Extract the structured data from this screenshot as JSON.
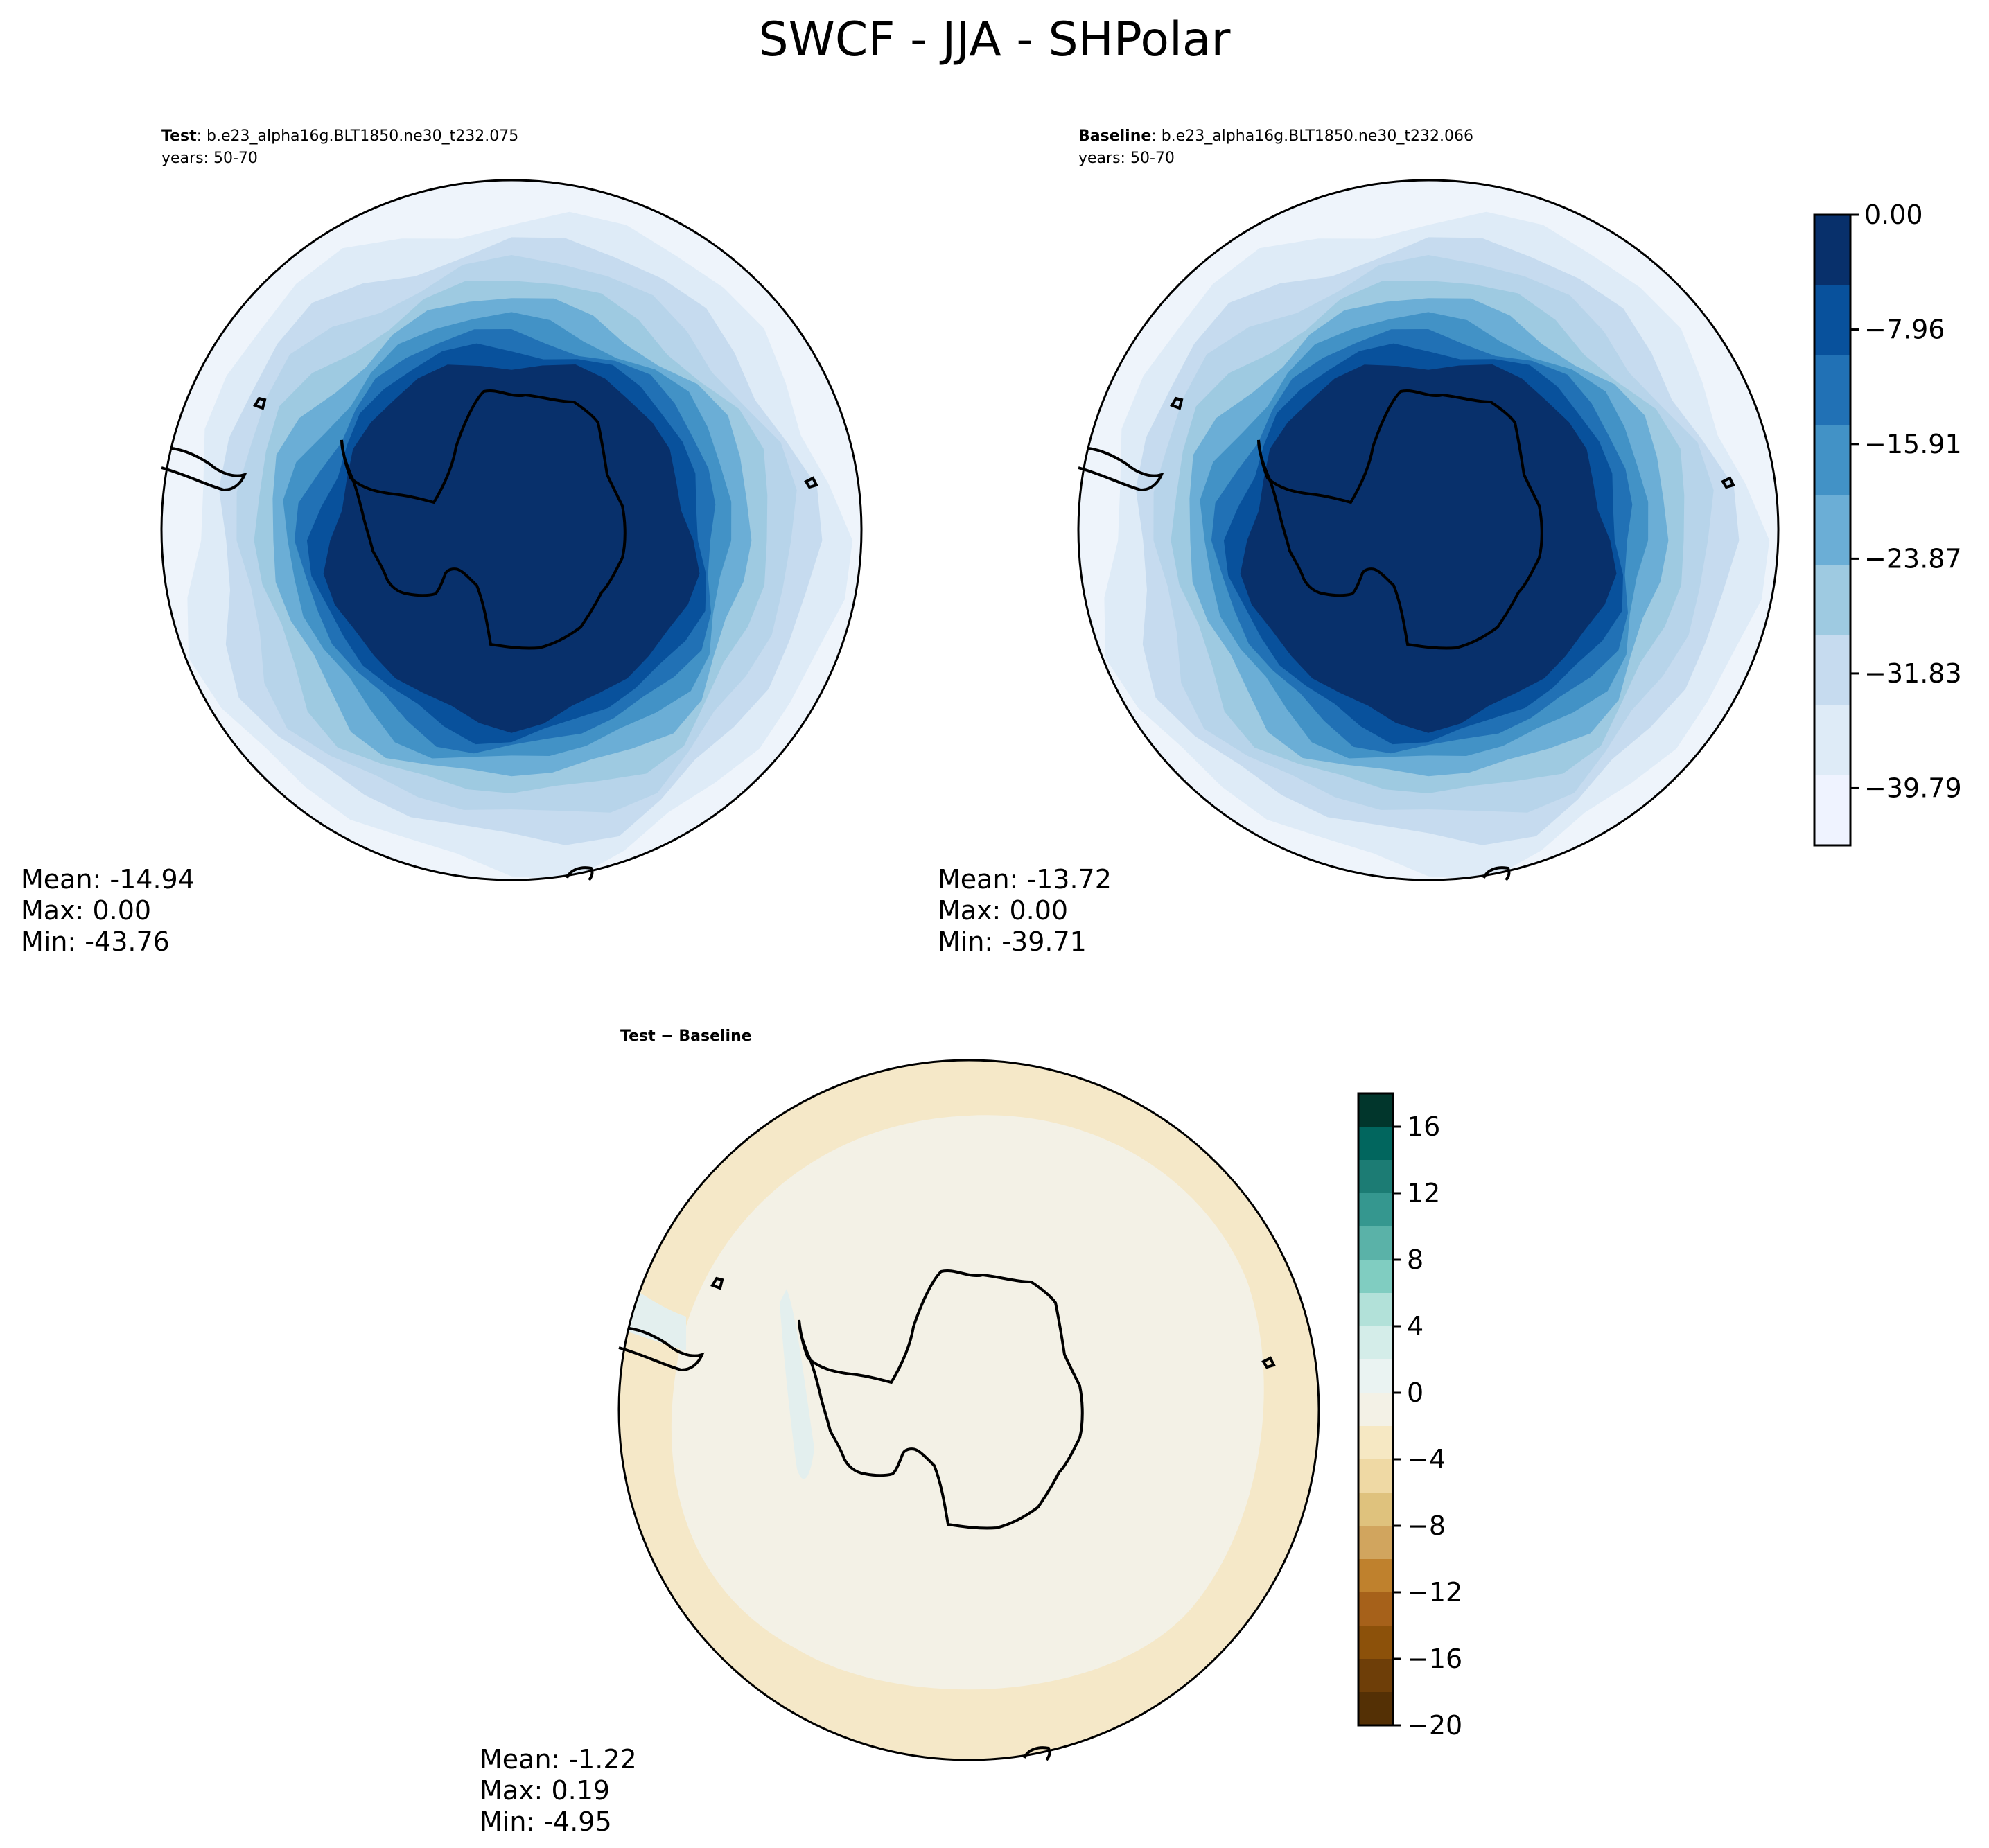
{
  "figure": {
    "title": "SWCF - JJA - SHPolar"
  },
  "panels": [
    {
      "id": "test",
      "label_bold": "Test",
      "label_rest": ": b.e23_alpha16g.BLT1850.ne30_t232.075",
      "years": "years: 50-70",
      "stats": {
        "mean": "Mean: -14.94",
        "max": "Max:  0.00",
        "min": "Min: -43.76"
      },
      "field": {
        "min": -43.76,
        "max": 0.0,
        "mean": -14.94,
        "colormap": "Blues_r"
      }
    },
    {
      "id": "baseline",
      "label_bold": "Baseline",
      "label_rest": ": b.e23_alpha16g.BLT1850.ne30_t232.066",
      "years": "years: 50-70",
      "stats": {
        "mean": "Mean: -13.72",
        "max": "Max:  0.00",
        "min": "Min: -39.71"
      },
      "field": {
        "min": -39.71,
        "max": 0.0,
        "mean": -13.72,
        "colormap": "Blues_r"
      }
    },
    {
      "id": "diff",
      "label_bold": "Test",
      "label_rest": " − Baseline",
      "stats": {
        "mean": "Mean: -1.22",
        "max": "Max:  0.19",
        "min": "Min: -4.95"
      },
      "field": {
        "min": -4.95,
        "max": 0.19,
        "mean": -1.22,
        "colormap": "BrBG"
      }
    }
  ],
  "colorbars": {
    "main": {
      "ticks": [
        "0.00",
        "−7.96",
        "−15.91",
        "−23.87",
        "−31.83",
        "−39.79"
      ],
      "colors": [
        "#08306b",
        "#08519c",
        "#2171b5",
        "#4292c6",
        "#6baed6",
        "#9ecae1",
        "#c6dbef",
        "#deebf7",
        "#eff3ff"
      ]
    },
    "diff": {
      "ticks": [
        "16",
        "12",
        "8",
        "4",
        "0",
        "−4",
        "−8",
        "−12",
        "−16",
        "−20"
      ],
      "colors": [
        "#01362c",
        "#01665e",
        "#1c7c74",
        "#35978f",
        "#5ab2a8",
        "#80cdc1",
        "#b2e1d9",
        "#d4ede9",
        "#eaf3f2",
        "#f3f1e6",
        "#f6e8c3",
        "#efd9a4",
        "#dfc27d",
        "#d1a55e",
        "#bf812d",
        "#a6611a",
        "#8c510a",
        "#6e3e08",
        "#543005"
      ]
    }
  },
  "colors": {
    "test_rings": [
      "#08306b",
      "#08519c",
      "#2171b5",
      "#4292c6",
      "#6baed6",
      "#9ecae1",
      "#b7d4ea",
      "#c6dbef",
      "#deebf7",
      "#eef4fb"
    ],
    "diff_background": "#f3f1e6",
    "diff_outer": "#f5e8c8",
    "diff_patch": "#eddcae",
    "diff_teal_patch": "#e3efee"
  }
}
